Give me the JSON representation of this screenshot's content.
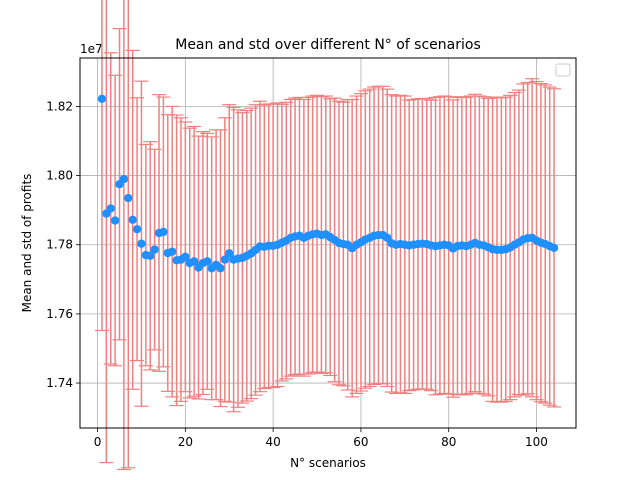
{
  "chart_data": {
    "type": "scatter",
    "title": "Mean and std over different N° of scenarios",
    "xlabel": "N° scenarios",
    "ylabel": "Mean and std of profits",
    "y_offset_label": "1e7",
    "xlim": [
      -4,
      109
    ],
    "ylim": [
      17270000,
      18340000
    ],
    "x_ticks": [
      0,
      20,
      40,
      60,
      80,
      100
    ],
    "y_ticks": [
      17400000,
      17600000,
      17800000,
      18000000,
      18200000
    ],
    "y_tick_labels": [
      "1.74",
      "1.76",
      "1.78",
      "1.80",
      "1.82"
    ],
    "grid": true,
    "legend": "top-right",
    "marker_color": "#1e90ff",
    "errorbar_color": "#f08080",
    "series": [
      {
        "x": [
          1,
          2,
          3,
          4,
          5,
          6,
          7,
          8,
          9,
          10,
          11,
          12,
          13,
          14,
          15,
          16,
          17,
          18,
          19,
          20,
          21,
          22,
          23,
          24,
          25,
          26,
          27,
          28,
          29,
          30,
          31,
          32,
          33,
          34,
          35,
          36,
          37,
          38,
          39,
          40,
          41,
          42,
          43,
          44,
          45,
          46,
          47,
          48,
          49,
          50,
          51,
          52,
          53,
          54,
          55,
          56,
          57,
          58,
          59,
          60,
          61,
          62,
          63,
          64,
          65,
          66,
          67,
          68,
          69,
          70,
          71,
          72,
          73,
          74,
          75,
          76,
          77,
          78,
          79,
          80,
          81,
          82,
          83,
          84,
          85,
          86,
          87,
          88,
          89,
          90,
          91,
          92,
          93,
          94,
          95,
          96,
          97,
          98,
          99,
          100,
          101,
          102,
          103,
          104
        ],
        "y": [
          18222000,
          17890000,
          17905000,
          17870000,
          17975000,
          17990000,
          17935000,
          17872000,
          17845000,
          17803000,
          17770000,
          17768000,
          17786000,
          17834000,
          17837000,
          17776000,
          17780000,
          17755000,
          17757000,
          17765000,
          17747000,
          17752000,
          17734000,
          17747000,
          17752000,
          17732000,
          17742000,
          17732000,
          17757000,
          17775000,
          17757000,
          17760000,
          17762000,
          17768000,
          17775000,
          17785000,
          17795000,
          17794000,
          17797000,
          17797000,
          17800000,
          17806000,
          17812000,
          17820000,
          17824000,
          17826000,
          17820000,
          17826000,
          17830000,
          17832000,
          17828000,
          17830000,
          17822000,
          17814000,
          17805000,
          17802000,
          17800000,
          17790000,
          17800000,
          17807000,
          17815000,
          17820000,
          17826000,
          17828000,
          17828000,
          17820000,
          17804000,
          17800000,
          17802000,
          17800000,
          17798000,
          17800000,
          17802000,
          17803000,
          17802000,
          17798000,
          17796000,
          17798000,
          17800000,
          17798000,
          17789000,
          17796000,
          17798000,
          17796000,
          17800000,
          17805000,
          17800000,
          17798000,
          17793000,
          17787000,
          17785000,
          17785000,
          17787000,
          17792000,
          17800000,
          17807000,
          17815000,
          17819000,
          17820000,
          17812000,
          17806000,
          17802000,
          17796000,
          17791000
        ],
        "err": [
          670000,
          720000,
          450000,
          420000,
          450000,
          840000,
          780000,
          490000,
          380000,
          470000,
          320000,
          330000,
          290000,
          400000,
          390000,
          400000,
          420000,
          420000,
          410000,
          390000,
          390000,
          390000,
          380000,
          380000,
          370000,
          380000,
          390000,
          400000,
          410000,
          430000,
          440000,
          430000,
          420000,
          420000,
          420000,
          420000,
          420000,
          410000,
          410000,
          410000,
          410000,
          400000,
          400000,
          400000,
          400000,
          400000,
          400000,
          400000,
          400000,
          400000,
          400000,
          400000,
          400000,
          410000,
          410000,
          410000,
          420000,
          430000,
          430000,
          430000,
          430000,
          430000,
          430000,
          430000,
          430000,
          430000,
          430000,
          430000,
          430000,
          430000,
          420000,
          420000,
          420000,
          420000,
          420000,
          420000,
          430000,
          430000,
          430000,
          430000,
          430000,
          430000,
          430000,
          430000,
          430000,
          430000,
          430000,
          430000,
          430000,
          440000,
          440000,
          440000,
          440000,
          440000,
          440000,
          440000,
          450000,
          450000,
          460000,
          460000,
          460000,
          460000,
          460000,
          460000
        ]
      }
    ]
  }
}
